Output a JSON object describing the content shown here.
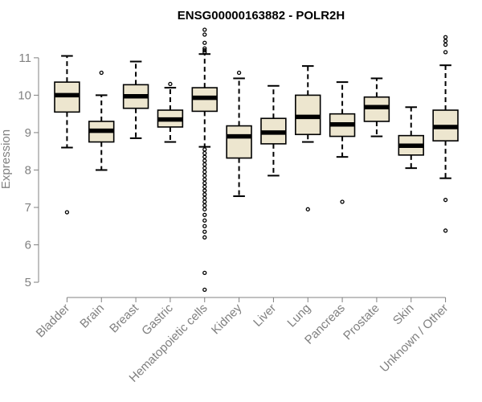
{
  "chart_data": {
    "type": "boxplot",
    "title": "ENSG00000163882 - POLR2H",
    "xlabel": "",
    "ylabel": "Expression",
    "ylim": [
      4.7,
      11.9
    ],
    "yticks": [
      5,
      6,
      7,
      8,
      9,
      10,
      11
    ],
    "box_fill": "#ede6cf",
    "categories": [
      "Bladder",
      "Brain",
      "Breast",
      "Gastric",
      "Hematopoietic cells",
      "Kidney",
      "Liver",
      "Lung",
      "Pancreas",
      "Prostate",
      "Skin",
      "Unknown / Other"
    ],
    "boxes": [
      {
        "whisker_low": 8.6,
        "q1": 9.55,
        "median": 10.0,
        "q3": 10.35,
        "whisker_high": 11.05,
        "outliers": [
          6.87
        ]
      },
      {
        "whisker_low": 8.0,
        "q1": 8.75,
        "median": 9.05,
        "q3": 9.3,
        "whisker_high": 10.0,
        "outliers": [
          10.6
        ]
      },
      {
        "whisker_low": 8.85,
        "q1": 9.65,
        "median": 9.97,
        "q3": 10.28,
        "whisker_high": 10.9,
        "outliers": []
      },
      {
        "whisker_low": 8.75,
        "q1": 9.15,
        "median": 9.35,
        "q3": 9.6,
        "whisker_high": 10.2,
        "outliers": [
          10.3
        ]
      },
      {
        "whisker_low": 8.62,
        "q1": 9.57,
        "median": 9.93,
        "q3": 10.2,
        "whisker_high": 11.1,
        "outliers": [
          11.75,
          11.62,
          11.4,
          11.25,
          11.2,
          11.15,
          8.55,
          8.45,
          8.35,
          8.25,
          8.15,
          8.05,
          7.95,
          7.85,
          7.75,
          7.65,
          7.55,
          7.45,
          7.35,
          7.25,
          7.15,
          7.05,
          6.95,
          6.8,
          6.65,
          6.5,
          6.35,
          6.2,
          5.25,
          4.8
        ]
      },
      {
        "whisker_low": 7.3,
        "q1": 8.32,
        "median": 8.9,
        "q3": 9.18,
        "whisker_high": 10.45,
        "outliers": [
          10.6
        ]
      },
      {
        "whisker_low": 7.85,
        "q1": 8.7,
        "median": 9.0,
        "q3": 9.38,
        "whisker_high": 10.25,
        "outliers": []
      },
      {
        "whisker_low": 8.75,
        "q1": 8.95,
        "median": 9.42,
        "q3": 10.0,
        "whisker_high": 10.78,
        "outliers": [
          6.95
        ]
      },
      {
        "whisker_low": 8.35,
        "q1": 8.9,
        "median": 9.22,
        "q3": 9.5,
        "whisker_high": 10.35,
        "outliers": [
          7.15
        ]
      },
      {
        "whisker_low": 8.9,
        "q1": 9.3,
        "median": 9.68,
        "q3": 9.95,
        "whisker_high": 10.45,
        "outliers": []
      },
      {
        "whisker_low": 8.05,
        "q1": 8.4,
        "median": 8.65,
        "q3": 8.92,
        "whisker_high": 9.68,
        "outliers": []
      },
      {
        "whisker_low": 7.78,
        "q1": 8.78,
        "median": 9.15,
        "q3": 9.6,
        "whisker_high": 10.8,
        "outliers": [
          11.55,
          11.45,
          11.35,
          11.15,
          7.2,
          6.38
        ]
      }
    ]
  }
}
